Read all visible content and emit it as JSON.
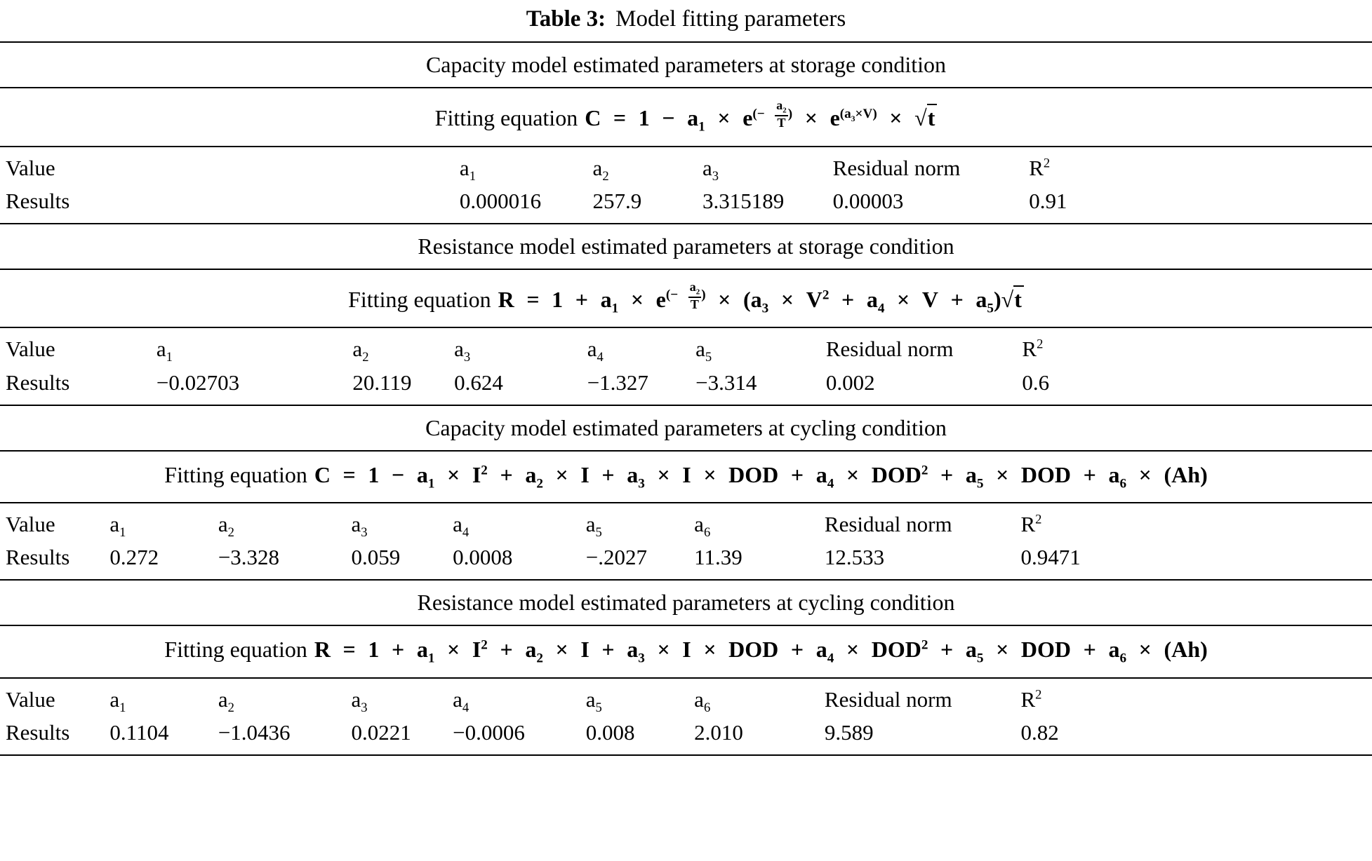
{
  "title": {
    "label": "Table 3:",
    "text": "Model fitting parameters"
  },
  "labels": {
    "value": "Value",
    "results": "Results"
  },
  "sections": [
    {
      "header": "Capacity model estimated parameters at storage condition",
      "eq_prefix": "Fitting equation",
      "equation_html": "<b>C</b> = 1 − <b>a</b><sub>1</sub> × <b>e</b><sup>(− <span class='frac'><span class='num'><b>a</b><sub>2</sub></span><span class='den'><b>T</b></span></span>)</sup> × <b>e</b><sup>(<b>a</b><sub>3</sub>×<b>V</b>)</sup> × √<span class='rad'><b>t</b></span>",
      "equation_text": "C = 1 − a1 × e^(− a2/T) × e^(a3×V) × √t",
      "columns": [
        "a<sub>1</sub>",
        "a<sub>2</sub>",
        "a<sub>3</sub>",
        "Residual norm",
        "R<sup>2</sup>"
      ],
      "results": [
        "0.000016",
        "257.9",
        "3.315189",
        "0.00003",
        "0.91"
      ]
    },
    {
      "header": "Resistance model estimated parameters at storage condition",
      "eq_prefix": "Fitting equation",
      "equation_html": "<b>R</b> = 1 + <b>a</b><sub>1</sub> × <b>e</b><sup>(− <span class='frac'><span class='num'><b>a</b><sub>2</sub></span><span class='den'><b>T</b></span></span>)</sup> × (<b>a</b><sub>3</sub> × <b>V</b><sup>2</sup> + <b>a</b><sub>4</sub> × <b>V</b> + <b>a</b><sub>5</sub>)√<span class='rad'><b>t</b></span>",
      "equation_text": "R = 1 + a1 × e^(− a2/T) × (a3 × V2 + a4 × V + a5)√t",
      "columns": [
        "a<sub>1</sub>",
        "a<sub>2</sub>",
        "a<sub>3</sub>",
        "a<sub>4</sub>",
        "a<sub>5</sub>",
        "Residual norm",
        "R<sup>2</sup>"
      ],
      "results": [
        "−0.02703",
        "20.119",
        "0.624",
        "−1.327",
        "−3.314",
        "0.002",
        "0.6"
      ]
    },
    {
      "header": "Capacity model estimated parameters at cycling condition",
      "eq_prefix": "Fitting equation",
      "equation_html": "<b>C</b> = 1 −  <b>a</b><sub>1</sub> × <b>I</b><sup>2</sup> + <b>a</b><sub>2</sub> × <b>I</b> + <b>a</b><sub>3</sub>  × <b>I</b> × <b>DOD</b> + <b>a</b><sub>4</sub> × <b>DOD</b><sup>2</sup> + <b>a</b><sub>5</sub> × <b>DOD</b> + <b>a</b><sub>6</sub> × (<b>Ah</b>)",
      "equation_text": "C = 1 − a1 × I2 + a2 × I + a3 × I × DOD + a4 × DOD2 + a5 × DOD + a6 × (Ah)",
      "columns": [
        "a<sub>1</sub>",
        "a<sub>2</sub>",
        "a<sub>3</sub>",
        "a<sub>4</sub>",
        "a<sub>5</sub>",
        "a<sub>6</sub>",
        "Residual norm",
        "R<sup>2</sup>"
      ],
      "results": [
        "0.272",
        "−3.328",
        "0.059",
        "0.0008",
        "−.2027",
        "11.39",
        "12.533",
        "0.9471"
      ]
    },
    {
      "header": "Resistance model estimated parameters at cycling condition",
      "eq_prefix": "Fitting equation",
      "equation_html": "<b>R</b> = 1 +  <b>a</b><sub>1</sub> × <b>I</b><sup>2</sup> + <b>a</b><sub>2</sub> × <b>I</b> + <b>a</b><sub>3</sub>  × <b>I</b> × <b>DOD</b> + <b>a</b><sub>4</sub> × <b>DOD</b><sup>2</sup> + <b>a</b><sub>5</sub> × <b>DOD</b> + <b>a</b><sub>6</sub> × (<b>Ah</b>)",
      "equation_text": "R = 1 + a1 × I2 + a2 × I + a3 × I × DOD + a4 × DOD2 + a5 × DOD + a6 × (Ah)",
      "columns": [
        "a<sub>1</sub>",
        "a<sub>2</sub>",
        "a<sub>3</sub>",
        "a<sub>4</sub>",
        "a<sub>5</sub>",
        "a<sub>6</sub>",
        "Residual norm",
        "R<sup>2</sup>"
      ],
      "results": [
        "0.1104",
        "−1.0436",
        "0.0221",
        "−0.0006",
        "0.008",
        "2.010",
        "9.589",
        "0.82"
      ]
    }
  ]
}
